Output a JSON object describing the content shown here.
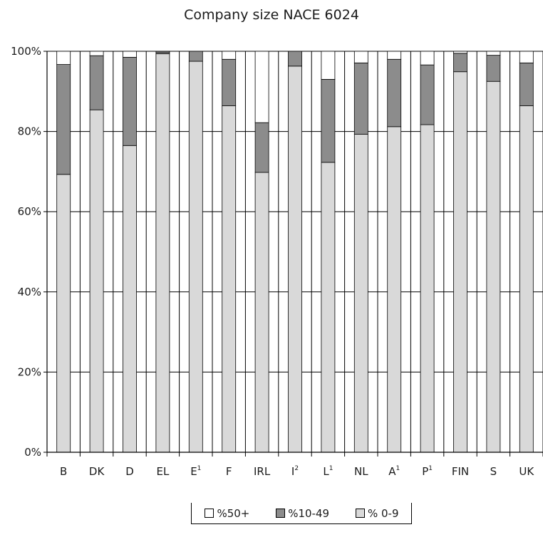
{
  "chart_data": {
    "type": "bar",
    "stacked": true,
    "title": "Company size NACE 6024",
    "xlabel": "",
    "ylabel": "",
    "ylim": [
      0,
      100
    ],
    "yticks": [
      "0%",
      "20%",
      "40%",
      "60%",
      "80%",
      "100%"
    ],
    "grid": true,
    "legend_position": "bottom-center",
    "categories": [
      {
        "label": "B",
        "sup": ""
      },
      {
        "label": "DK",
        "sup": ""
      },
      {
        "label": "D",
        "sup": ""
      },
      {
        "label": "EL",
        "sup": ""
      },
      {
        "label": "E",
        "sup": "1"
      },
      {
        "label": "F",
        "sup": ""
      },
      {
        "label": "IRL",
        "sup": ""
      },
      {
        "label": "I",
        "sup": "2"
      },
      {
        "label": "L",
        "sup": "1"
      },
      {
        "label": "NL",
        "sup": ""
      },
      {
        "label": "A",
        "sup": "1"
      },
      {
        "label": "P",
        "sup": "1"
      },
      {
        "label": "FIN",
        "sup": ""
      },
      {
        "label": "S",
        "sup": ""
      },
      {
        "label": "UK",
        "sup": ""
      }
    ],
    "series": [
      {
        "name": "% 0-9",
        "color": "#d9d9d9",
        "values": [
          69.3,
          85.4,
          76.5,
          99.4,
          97.5,
          86.4,
          69.8,
          96.3,
          72.3,
          79.3,
          81.2,
          81.7,
          94.9,
          92.5,
          86.4
        ]
      },
      {
        "name": "%10-49",
        "color": "#8c8c8c",
        "values": [
          27.4,
          13.5,
          22.0,
          0.4,
          2.5,
          11.6,
          12.4,
          3.7,
          20.7,
          17.8,
          16.8,
          14.9,
          4.6,
          6.5,
          10.7
        ]
      },
      {
        "name": "%50+",
        "color": "#ffffff",
        "values": [
          3.3,
          1.1,
          1.5,
          0.2,
          0.0,
          2.0,
          17.8,
          0.0,
          7.0,
          2.9,
          2.0,
          3.4,
          0.5,
          1.0,
          2.9
        ]
      }
    ],
    "legend_order": [
      "%50+",
      "%10-49",
      "% 0-9"
    ]
  }
}
